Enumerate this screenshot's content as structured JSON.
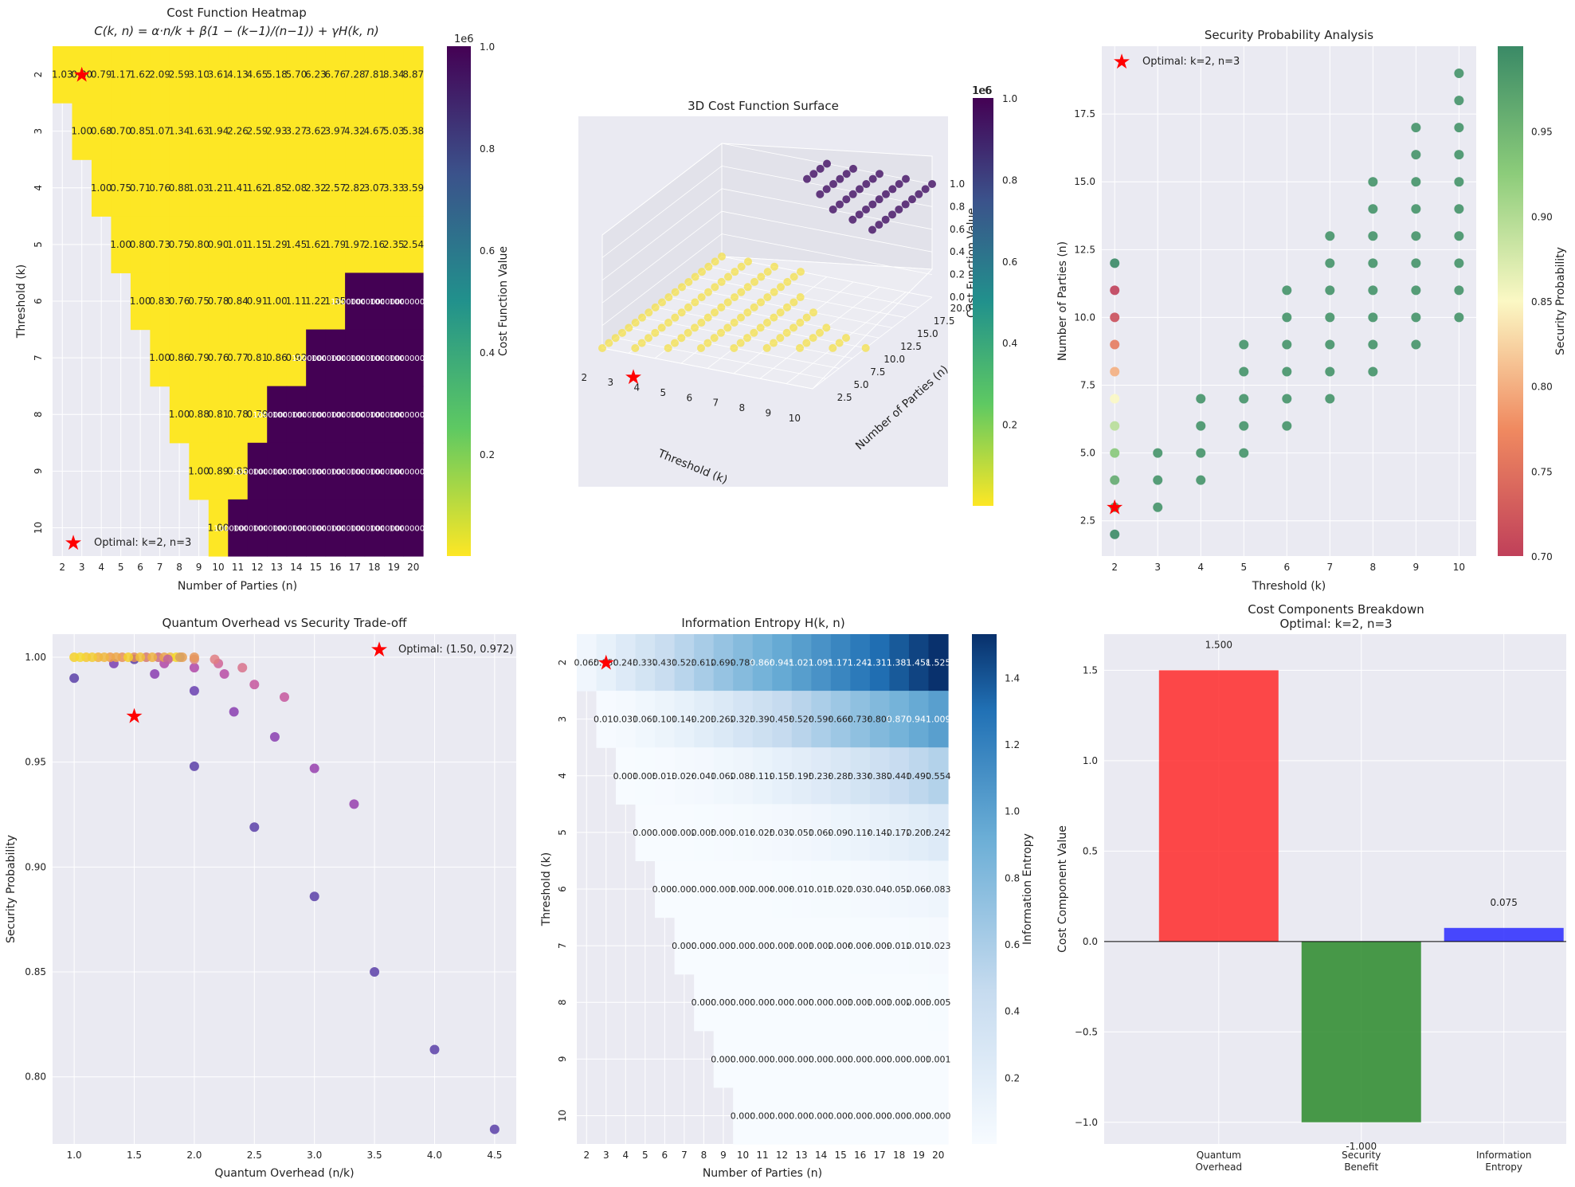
{
  "chart_data": [
    {
      "type": "heatmap",
      "title": "Cost Function Heatmap",
      "subtitle": "C(k, n) = α·n/k + β(1 − (k−1)/(n−1)) + γH(k, n)",
      "xlabel": "Number of Parties (n)",
      "ylabel": "Threshold (k)",
      "x_ticks": [
        "2",
        "3",
        "4",
        "5",
        "6",
        "7",
        "8",
        "9",
        "10",
        "11",
        "12",
        "13",
        "14",
        "15",
        "16",
        "17",
        "18",
        "19",
        "20"
      ],
      "y_ticks": [
        "2",
        "3",
        "4",
        "5",
        "6",
        "7",
        "8",
        "9",
        "10"
      ],
      "colorbar_label": "Cost Function Value",
      "colorbar_scale": "1e6",
      "colorbar_ticks": [
        "0.2",
        "0.4",
        "0.6",
        "0.8",
        "1.0"
      ],
      "rows": [
        [
          "1.03",
          "0.80",
          "0.79",
          "1.17",
          "1.62",
          "2.09",
          "2.59",
          "3.10",
          "3.61",
          "4.13",
          "4.65",
          "5.18",
          "5.70",
          "6.23",
          "6.76",
          "7.28",
          "7.81",
          "8.34",
          "8.87"
        ],
        [
          null,
          "1.00",
          "0.68",
          "0.70",
          "0.85",
          "1.07",
          "1.34",
          "1.63",
          "1.94",
          "2.26",
          "2.59",
          "2.93",
          "3.27",
          "3.62",
          "3.97",
          "4.32",
          "4.67",
          "5.03",
          "5.38"
        ],
        [
          null,
          null,
          "1.00",
          "0.75",
          "0.71",
          "0.76",
          "0.88",
          "1.03",
          "1.21",
          "1.41",
          "1.62",
          "1.85",
          "2.08",
          "2.32",
          "2.57",
          "2.82",
          "3.07",
          "3.33",
          "3.59"
        ],
        [
          null,
          null,
          null,
          "1.00",
          "0.80",
          "0.73",
          "0.75",
          "0.80",
          "0.90",
          "1.01",
          "1.15",
          "1.29",
          "1.45",
          "1.62",
          "1.79",
          "1.97",
          "2.16",
          "2.35",
          "2.54"
        ],
        [
          null,
          null,
          null,
          null,
          "1.00",
          "0.83",
          "0.76",
          "0.75",
          "0.78",
          "0.84",
          "0.91",
          "1.00",
          "1.11",
          "1.22",
          "1.35",
          "1000000",
          "1000000",
          "1000000",
          "1000000"
        ],
        [
          null,
          null,
          null,
          null,
          null,
          "1.00",
          "0.86",
          "0.79",
          "0.76",
          "0.77",
          "0.81",
          "0.86",
          "0.92",
          "1000000",
          "1000000",
          "1000000",
          "1000000",
          "1000000",
          "1000000"
        ],
        [
          null,
          null,
          null,
          null,
          null,
          null,
          "1.00",
          "0.88",
          "0.81",
          "0.78",
          "0.79",
          "1000000",
          "1000000",
          "1000000",
          "1000000",
          "1000000",
          "1000000",
          "1000000",
          "1000000"
        ],
        [
          null,
          null,
          null,
          null,
          null,
          null,
          null,
          "1.00",
          "0.89",
          "0.83",
          "1000000",
          "1000000",
          "1000000",
          "1000000",
          "1000000",
          "1000000",
          "1000000",
          "1000000",
          "1000000"
        ],
        [
          null,
          null,
          null,
          null,
          null,
          null,
          null,
          null,
          "1.00",
          "1000000",
          "1000000",
          "1000000",
          "1000000",
          "1000000",
          "1000000",
          "1000000",
          "1000000",
          "1000000",
          "1000000"
        ]
      ],
      "optimal_marker": {
        "k": 2,
        "n": 3
      },
      "legend": "Optimal: k=2, n=3"
    },
    {
      "type": "scatter3d",
      "title": "3D Cost Function Surface",
      "xlabel": "Threshold (k)",
      "ylabel": "Number of Parties (n)",
      "zlabel": "Cost Function Value",
      "x_ticks": [
        "2",
        "3",
        "4",
        "5",
        "6",
        "7",
        "8",
        "9",
        "10"
      ],
      "y_ticks": [
        "2.5",
        "5.0",
        "7.5",
        "10.0",
        "12.5",
        "15.0",
        "17.5",
        "20.0"
      ],
      "z_ticks": [
        "0.0",
        "0.2",
        "0.4",
        "0.6",
        "0.8",
        "1.0"
      ],
      "z_scale": "1e6",
      "colorbar_scale": "1e6",
      "colorbar_ticks": [
        "0.2",
        "0.4",
        "0.6",
        "0.8",
        "1.0"
      ],
      "optimal_marker": {
        "k": 2,
        "n": 3
      }
    },
    {
      "type": "scatter",
      "title": "Security Probability Analysis",
      "xlabel": "Threshold (k)",
      "ylabel": "Number of Parties (n)",
      "x_ticks": [
        "2",
        "3",
        "4",
        "5",
        "6",
        "7",
        "8",
        "9",
        "10"
      ],
      "y_ticks": [
        "2.5",
        "5.0",
        "7.5",
        "10.0",
        "12.5",
        "15.0",
        "17.5"
      ],
      "xlim": [
        1.7,
        10.4
      ],
      "ylim": [
        1.2,
        20.0
      ],
      "colorbar_label": "Security Probability",
      "colorbar_ticks": [
        "0.70",
        "0.75",
        "0.80",
        "0.85",
        "0.90",
        "0.95"
      ],
      "k2_probabilities": [
        0.999,
        0.975,
        0.962,
        0.93,
        0.895,
        0.85,
        0.8,
        0.76,
        0.715,
        0.7
      ],
      "optimal_marker": {
        "k": 2,
        "n": 3
      },
      "legend": "Optimal: k=2, n=3"
    },
    {
      "type": "scatter",
      "title": "Quantum Overhead vs Security Trade-off",
      "xlabel": "Quantum Overhead (n/k)",
      "ylabel": "Security Probability",
      "x_ticks": [
        "1.0",
        "1.5",
        "2.0",
        "2.5",
        "3.0",
        "3.5",
        "4.0",
        "4.5"
      ],
      "y_ticks": [
        "0.80",
        "0.85",
        "0.90",
        "0.95",
        "1.00"
      ],
      "xlim": [
        0.82,
        4.68
      ],
      "ylim": [
        0.768,
        1.011
      ],
      "points": [
        {
          "x": 1.0,
          "y": 0.99,
          "c": "#5b3fa8"
        },
        {
          "x": 1.5,
          "y": 0.999,
          "c": "#5b3fa8"
        },
        {
          "x": 2.0,
          "y": 0.984,
          "c": "#6a3fb0"
        },
        {
          "x": 2.0,
          "y": 0.948,
          "c": "#5b3fa8"
        },
        {
          "x": 2.5,
          "y": 0.919,
          "c": "#5b3fa8"
        },
        {
          "x": 3.0,
          "y": 0.886,
          "c": "#5b3fa8"
        },
        {
          "x": 3.5,
          "y": 0.85,
          "c": "#5b3fa8"
        },
        {
          "x": 4.0,
          "y": 0.813,
          "c": "#5b3fa8"
        },
        {
          "x": 4.5,
          "y": 0.775,
          "c": "#5b3fa8"
        },
        {
          "x": 1.33,
          "y": 0.997,
          "c": "#7a3eb2"
        },
        {
          "x": 1.67,
          "y": 0.992,
          "c": "#8a3eb0"
        },
        {
          "x": 2.33,
          "y": 0.974,
          "c": "#8a3eb0"
        },
        {
          "x": 2.67,
          "y": 0.962,
          "c": "#8a3eb0"
        },
        {
          "x": 3.0,
          "y": 0.947,
          "c": "#9640ae"
        },
        {
          "x": 3.33,
          "y": 0.93,
          "c": "#9640ae"
        },
        {
          "x": 1.75,
          "y": 0.997,
          "c": "#b048a8"
        },
        {
          "x": 2.0,
          "y": 0.995,
          "c": "#b048a8"
        },
        {
          "x": 2.25,
          "y": 0.992,
          "c": "#b84ca4"
        },
        {
          "x": 2.5,
          "y": 0.987,
          "c": "#c6579e"
        },
        {
          "x": 2.75,
          "y": 0.981,
          "c": "#c6579e"
        },
        {
          "x": 2.2,
          "y": 0.997,
          "c": "#d06496"
        },
        {
          "x": 2.4,
          "y": 0.995,
          "c": "#d8728c"
        },
        {
          "x": 2.17,
          "y": 0.999,
          "c": "#e07e82"
        },
        {
          "x": 2.0,
          "y": 0.999,
          "c": "#e08878"
        },
        {
          "x": 1.0,
          "y": 1.0,
          "c": "#f4d02a"
        },
        {
          "x": 1.1,
          "y": 1.0,
          "c": "#f6c830"
        },
        {
          "x": 1.2,
          "y": 1.0,
          "c": "#f2b23c"
        },
        {
          "x": 1.3,
          "y": 1.0,
          "c": "#ee9c4a"
        },
        {
          "x": 1.4,
          "y": 1.0,
          "c": "#e8905a"
        },
        {
          "x": 1.5,
          "y": 1.0,
          "c": "#e08a60"
        },
        {
          "x": 1.6,
          "y": 1.0,
          "c": "#d67a6e"
        },
        {
          "x": 1.7,
          "y": 1.0,
          "c": "#cc6c80"
        },
        {
          "x": 1.8,
          "y": 1.0,
          "c": "#f0c040"
        },
        {
          "x": 1.9,
          "y": 1.0,
          "c": "#e8a050"
        },
        {
          "x": 1.05,
          "y": 1.0,
          "c": "#f4d830"
        },
        {
          "x": 1.15,
          "y": 1.0,
          "c": "#f2cc34"
        },
        {
          "x": 1.25,
          "y": 1.0,
          "c": "#f0b840"
        },
        {
          "x": 1.35,
          "y": 1.0,
          "c": "#eca84a"
        },
        {
          "x": 1.45,
          "y": 1.0,
          "c": "#f4d02a"
        },
        {
          "x": 1.55,
          "y": 1.0,
          "c": "#f0c23a"
        },
        {
          "x": 1.65,
          "y": 1.0,
          "c": "#eeb442"
        },
        {
          "x": 1.75,
          "y": 1.0,
          "c": "#eaa44c"
        },
        {
          "x": 1.85,
          "y": 1.0,
          "c": "#f4d82c"
        },
        {
          "x": 2.0,
          "y": 1.0,
          "c": "#e6985a"
        },
        {
          "x": 1.78,
          "y": 0.999,
          "c": "#c060a0"
        },
        {
          "x": 1.88,
          "y": 1.0,
          "c": "#d8a060"
        }
      ],
      "optimal_marker": {
        "x": 1.5,
        "y": 0.972
      },
      "legend": "Optimal: (1.50, 0.972)"
    },
    {
      "type": "heatmap",
      "title": "Information Entropy H(k, n)",
      "xlabel": "Number of Parties (n)",
      "ylabel": "Threshold (k)",
      "x_ticks": [
        "2",
        "3",
        "4",
        "5",
        "6",
        "7",
        "8",
        "9",
        "10",
        "11",
        "12",
        "13",
        "14",
        "15",
        "16",
        "17",
        "18",
        "19",
        "20"
      ],
      "y_ticks": [
        "2",
        "3",
        "4",
        "5",
        "6",
        "7",
        "8",
        "9",
        "10"
      ],
      "colorbar_label": "Information Entropy",
      "colorbar_ticks": [
        "0.2",
        "0.4",
        "0.6",
        "0.8",
        "1.0",
        "1.2",
        "1.4"
      ],
      "rows": [
        [
          "0.065",
          "0.150",
          "0.243",
          "0.337",
          "0.431",
          "0.523",
          "0.612",
          "0.699",
          "0.784",
          "0.866",
          "0.945",
          "1.021",
          "1.095",
          "1.171",
          "1.242",
          "1.311",
          "1.383",
          "1.458",
          "1.525"
        ],
        [
          null,
          "0.010",
          "0.031",
          "0.061",
          "0.101",
          "0.149",
          "0.203",
          "0.262",
          "0.325",
          "0.390",
          "0.458",
          "0.526",
          "0.596",
          "0.666",
          "0.736",
          "0.804",
          "0.870",
          "0.941",
          "1.009"
        ],
        [
          null,
          null,
          "0.001",
          "0.005",
          "0.013",
          "0.026",
          "0.041",
          "0.062",
          "0.088",
          "0.119",
          "0.155",
          "0.195",
          "0.238",
          "0.285",
          "0.334",
          "0.387",
          "0.441",
          "0.497",
          "0.554"
        ],
        [
          null,
          null,
          null,
          "0.000",
          "0.001",
          "0.002",
          "0.005",
          "0.009",
          "0.016",
          "0.025",
          "0.037",
          "0.051",
          "0.069",
          "0.090",
          "0.114",
          "0.142",
          "0.172",
          "0.205",
          "0.242"
        ],
        [
          null,
          null,
          null,
          null,
          "0.000",
          "0.000",
          "0.000",
          "0.001",
          "0.002",
          "0.004",
          "0.006",
          "0.010",
          "0.015",
          "0.021",
          "0.030",
          "0.040",
          "0.052",
          "0.066",
          "0.083"
        ],
        [
          null,
          null,
          null,
          null,
          null,
          "0.000",
          "0.000",
          "0.000",
          "0.000",
          "0.000",
          "0.001",
          "0.001",
          "0.002",
          "0.004",
          "0.006",
          "0.009",
          "0.012",
          "0.017",
          "0.023"
        ],
        [
          null,
          null,
          null,
          null,
          null,
          null,
          "0.000",
          "0.000",
          "0.000",
          "0.000",
          "0.000",
          "0.000",
          "0.000",
          "0.001",
          "0.001",
          "0.001",
          "0.002",
          "0.003",
          "0.005"
        ],
        [
          null,
          null,
          null,
          null,
          null,
          null,
          null,
          "0.000",
          "0.000",
          "0.000",
          "0.000",
          "0.000",
          "0.000",
          "0.000",
          "0.000",
          "0.000",
          "0.000",
          "0.001",
          "0.001"
        ],
        [
          null,
          null,
          null,
          null,
          null,
          null,
          null,
          null,
          "0.000",
          "0.000",
          "0.000",
          "0.000",
          "0.000",
          "0.000",
          "0.000",
          "0.000",
          "0.000",
          "0.000",
          "0.000"
        ]
      ],
      "optimal_marker": {
        "k": 2,
        "n": 3
      }
    },
    {
      "type": "bar",
      "title": "Cost Components Breakdown",
      "subtitle": "Optimal: k=2, n=3",
      "categories": [
        "Quantum Overhead",
        "Security Benefit",
        "Information Entropy"
      ],
      "values": [
        1.5,
        -1.0,
        0.075
      ],
      "labels": [
        "1.500",
        "-1.000",
        "0.075"
      ],
      "colors": [
        "#ff2a2a",
        "#2a8a2a",
        "#2a2aff"
      ],
      "ylabel": "Cost Component Value",
      "y_ticks": [
        "−1.0",
        "−0.5",
        "0.0",
        "0.5",
        "1.0",
        "1.5"
      ],
      "ylim": [
        -1.12,
        1.7
      ]
    }
  ]
}
